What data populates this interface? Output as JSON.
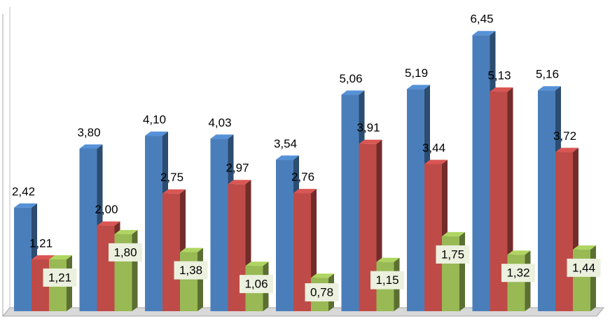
{
  "chart_data": {
    "type": "bar3d",
    "categories": [
      null,
      null,
      null,
      null,
      null,
      null,
      null,
      null,
      null
    ],
    "series": [
      {
        "color": "#4a7ebb",
        "values": [
          2.42,
          3.8,
          4.1,
          4.03,
          3.54,
          5.06,
          5.19,
          6.45,
          5.16
        ],
        "value_labels": [
          "2,42",
          "3,80",
          "4,10",
          "4,03",
          "3,54",
          "5,06",
          "5,19",
          "6,45",
          "5,16"
        ]
      },
      {
        "color": "#be4b48",
        "values": [
          1.21,
          2.0,
          2.75,
          2.97,
          2.76,
          3.91,
          3.44,
          5.13,
          3.72
        ],
        "value_labels": [
          "1,21",
          "2,00",
          "2,75",
          "2,97",
          "2,76",
          "3,91",
          "3,44",
          "5,13",
          "3,72"
        ]
      },
      {
        "color": "#98b954",
        "values": [
          1.21,
          1.8,
          1.38,
          1.06,
          0.78,
          1.15,
          1.75,
          1.32,
          1.44
        ],
        "value_labels": [
          "1,21",
          "1,80",
          "1,38",
          "1,06",
          "0,78",
          "1,15",
          "1,75",
          "1,32",
          "1,44"
        ]
      }
    ],
    "ylim": [
      0,
      7
    ],
    "grid": false
  }
}
